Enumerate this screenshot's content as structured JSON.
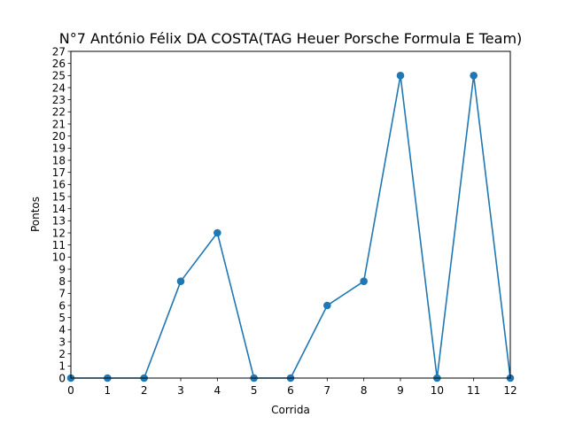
{
  "chart_data": {
    "type": "line",
    "title": "N°7 António Félix DA COSTA(TAG Heuer Porsche Formula E Team)",
    "xlabel": "Corrida",
    "ylabel": "Pontos",
    "x": [
      0,
      1,
      2,
      3,
      4,
      5,
      6,
      7,
      8,
      9,
      10,
      11,
      12
    ],
    "series": [
      {
        "values": [
          0,
          0,
          0,
          8,
          12,
          0,
          0,
          6,
          8,
          25,
          0,
          25,
          0
        ]
      }
    ],
    "xlim": [
      0,
      12
    ],
    "ylim": [
      0,
      27
    ],
    "xticks": [
      0,
      1,
      2,
      3,
      4,
      5,
      6,
      7,
      8,
      9,
      10,
      11,
      12
    ],
    "yticks": [
      0,
      1,
      2,
      3,
      4,
      5,
      6,
      7,
      8,
      9,
      10,
      11,
      12,
      13,
      14,
      15,
      16,
      17,
      18,
      19,
      20,
      21,
      22,
      23,
      24,
      25,
      26,
      27
    ],
    "grid": false,
    "legend": "none",
    "line_color": "#1f77b4",
    "marker": "circle"
  }
}
